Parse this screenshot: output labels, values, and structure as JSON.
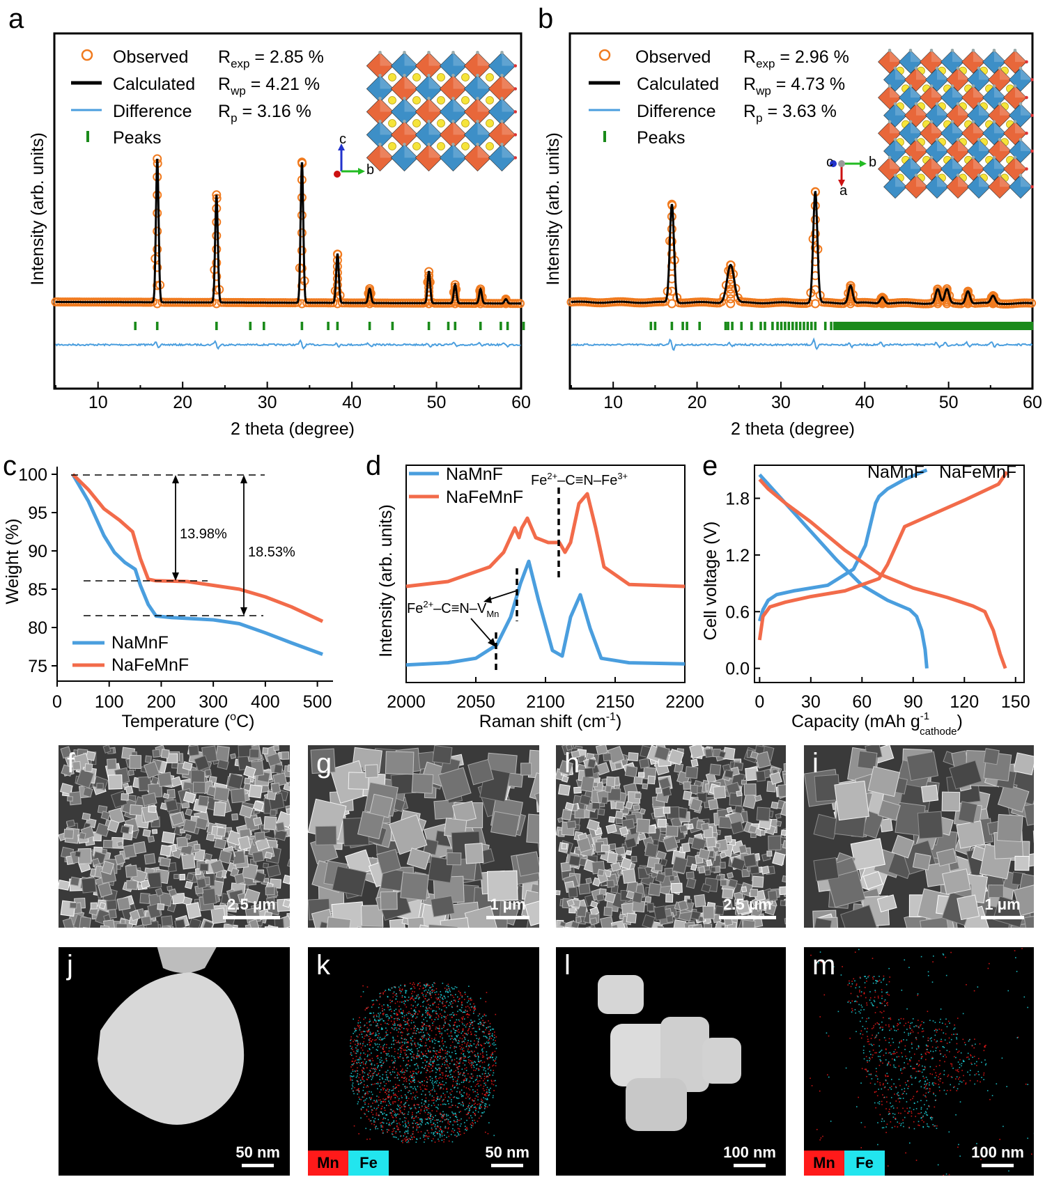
{
  "panels": {
    "a": {
      "letter": "a",
      "ylabel": "Intensity (arb. units)",
      "xlabel": "2  theta (degree)",
      "legend": [
        "Observed",
        "Calculated",
        "Difference",
        "Peaks"
      ],
      "stats": [
        {
          "sym": "R",
          "sub": "exp",
          "val": " = 2.85 %"
        },
        {
          "sym": "R",
          "sub": "wp",
          "val": " = 4.21 %"
        },
        {
          "sym": "R",
          "sub": "p",
          "val": " = 3.16 %"
        }
      ],
      "xticks": [
        "10",
        "20",
        "30",
        "40",
        "50",
        "60"
      ],
      "axis_labels": {
        "c": "c",
        "b": "b"
      }
    },
    "b": {
      "letter": "b",
      "ylabel": "Intensity (arb. units)",
      "xlabel": "2 theta (degree)",
      "legend": [
        "Observed",
        "Calculated",
        "Difference",
        "Peaks"
      ],
      "stats": [
        {
          "sym": "R",
          "sub": "exp",
          "val": " = 2.96 %"
        },
        {
          "sym": "R",
          "sub": "wp",
          "val": " = 4.73 %"
        },
        {
          "sym": "R",
          "sub": "p",
          "val": " = 3.63 %"
        }
      ],
      "xticks": [
        "10",
        "20",
        "30",
        "40",
        "50",
        "60"
      ],
      "axis_labels": {
        "c": "c",
        "b": "b",
        "a": "a"
      }
    },
    "c": {
      "letter": "c",
      "ylabel": "Weight (%)",
      "xlabel": "Temperature (",
      "xlabel_unit": "C)",
      "xlabel_sup": "o",
      "legend": [
        "NaMnF",
        "NaFeMnF"
      ],
      "annotations": [
        "13.98%",
        "18.53%"
      ],
      "xticks": [
        "0",
        "100",
        "200",
        "300",
        "400",
        "500"
      ],
      "yticks": [
        "75",
        "80",
        "85",
        "90",
        "95",
        "100"
      ]
    },
    "d": {
      "letter": "d",
      "ylabel": "Intensity (arb. units)",
      "xlabel": "Raman shift (cm",
      "xlabel_sup": "-1",
      "legend": [
        "NaMnF",
        "NaFeMnF"
      ],
      "ann_top": "Fe",
      "ann_top_sup": "2+",
      "ann_top_rest": "–C≡N–Fe",
      "ann_top_sup2": "3+",
      "ann_bot": "Fe",
      "ann_bot_sup": "2+",
      "ann_bot_rest": "–C≡N–V",
      "ann_bot_sub": "Mn",
      "xticks": [
        "2000",
        "2050",
        "2100",
        "2150",
        "2200"
      ]
    },
    "e": {
      "letter": "e",
      "ylabel": "Cell voltage (V)",
      "xlabel": "Capacity (mAh g",
      "xlabel_sup": "-1",
      "xlabel_sub": "cathode",
      "xlabel_end": ")",
      "series_labels": [
        "NaMnF",
        "NaFeMnF"
      ],
      "xticks": [
        "0",
        "30",
        "60",
        "90",
        "120",
        "150"
      ],
      "yticks": [
        "0.0",
        "0.6",
        "1.2",
        "1.8"
      ]
    }
  },
  "micrographs": [
    {
      "letter": "f",
      "scale": "2.5 μm"
    },
    {
      "letter": "g",
      "scale": "1 μm"
    },
    {
      "letter": "h",
      "scale": "2.5 μm"
    },
    {
      "letter": "i",
      "scale": "1 μm"
    },
    {
      "letter": "j",
      "scale": "50 nm"
    },
    {
      "letter": "k",
      "scale": "50 nm",
      "legend": [
        "Mn",
        "Fe"
      ]
    },
    {
      "letter": "l",
      "scale": "100 nm"
    },
    {
      "letter": "m",
      "scale": "100 nm",
      "legend": [
        "Mn",
        "Fe"
      ]
    }
  ],
  "colors": {
    "observed": "#f07a1e",
    "calculated": "#000000",
    "difference": "#4a9ede",
    "peaks": "#1a8a1a",
    "namnf": "#4a9ede",
    "nafemnf": "#f26b4a",
    "mn": "#ff1a1a",
    "fe": "#22e5ee"
  },
  "chart_data": [
    {
      "type": "line",
      "title": "a",
      "xlabel": "2 theta (degree)",
      "ylabel": "Intensity (arb. units)",
      "xlim": [
        5,
        60
      ],
      "peaks_observed": [
        {
          "x": 17.0,
          "y": 100
        },
        {
          "x": 24.0,
          "y": 75
        },
        {
          "x": 34.1,
          "y": 98
        },
        {
          "x": 38.3,
          "y": 34
        },
        {
          "x": 42.1,
          "y": 10
        },
        {
          "x": 49.1,
          "y": 22
        },
        {
          "x": 52.2,
          "y": 13
        },
        {
          "x": 55.2,
          "y": 10
        },
        {
          "x": 58.2,
          "y": 3
        }
      ],
      "bragg_positions": [
        14.4,
        17.0,
        24.0,
        28.0,
        29.6,
        34.1,
        37.2,
        38.3,
        42.1,
        44.8,
        49.1,
        51.4,
        52.2,
        55.2,
        57.6,
        58.4,
        60.3
      ]
    },
    {
      "type": "line",
      "title": "b",
      "xlabel": "2 theta (degree)",
      "ylabel": "Intensity (arb. units)",
      "xlim": [
        5,
        60
      ],
      "peaks_observed": [
        {
          "x": 17.0,
          "y": 78
        },
        {
          "x": 24.0,
          "y": 30
        },
        {
          "x": 34.1,
          "y": 88
        },
        {
          "x": 38.3,
          "y": 14
        },
        {
          "x": 42.1,
          "y": 5
        },
        {
          "x": 48.7,
          "y": 11
        },
        {
          "x": 49.8,
          "y": 11
        },
        {
          "x": 52.3,
          "y": 10
        },
        {
          "x": 55.3,
          "y": 6
        }
      ]
    },
    {
      "type": "line",
      "title": "c",
      "xlabel": "Temperature (oC)",
      "ylabel": "Weight (%)",
      "xlim": [
        0,
        530
      ],
      "ylim": [
        73,
        101
      ],
      "series": [
        {
          "name": "NaMnF",
          "x": [
            30,
            60,
            90,
            110,
            130,
            150,
            160,
            175,
            190,
            220,
            300,
            350,
            400,
            450,
            510
          ],
          "values": [
            100,
            96.5,
            92,
            89.8,
            88.5,
            87.6,
            85.5,
            83,
            81.5,
            81.3,
            81,
            80.5,
            79.3,
            78,
            76.5
          ]
        },
        {
          "name": "NaFeMnF",
          "x": [
            30,
            60,
            90,
            120,
            145,
            160,
            175,
            190,
            250,
            300,
            350,
            400,
            450,
            510
          ],
          "values": [
            100,
            98,
            95.5,
            94,
            92.5,
            89,
            86.3,
            86.1,
            86,
            85.5,
            85,
            84,
            82.7,
            80.8
          ]
        }
      ],
      "annotations": [
        {
          "text": "13.98%",
          "from": 100,
          "to": 86.02
        },
        {
          "text": "18.53%",
          "from": 100,
          "to": 81.47
        }
      ]
    },
    {
      "type": "line",
      "title": "d",
      "xlabel": "Raman shift (cm-1)",
      "ylabel": "Intensity (arb. units)",
      "xlim": [
        2000,
        2200
      ],
      "series": [
        {
          "name": "NaMnF",
          "x": [
            2000,
            2030,
            2050,
            2065,
            2075,
            2082,
            2088,
            2095,
            2105,
            2112,
            2118,
            2125,
            2132,
            2140,
            2160,
            2200
          ],
          "values": [
            0.02,
            0.04,
            0.08,
            0.2,
            0.45,
            0.75,
            0.95,
            0.6,
            0.15,
            0.1,
            0.45,
            0.65,
            0.35,
            0.08,
            0.04,
            0.03
          ]
        },
        {
          "name": "NaFeMnF",
          "x": [
            2000,
            2030,
            2060,
            2070,
            2078,
            2081,
            2083,
            2087,
            2093,
            2102,
            2110,
            2114,
            2118,
            2124,
            2130,
            2136,
            2142,
            2160,
            2200
          ],
          "values": [
            0.0,
            0.05,
            0.2,
            0.35,
            0.6,
            0.5,
            0.6,
            0.7,
            0.5,
            0.45,
            0.45,
            0.35,
            0.45,
            0.85,
            0.95,
            0.6,
            0.2,
            0.02,
            0.0
          ]
        }
      ]
    },
    {
      "type": "line",
      "title": "e",
      "xlabel": "Capacity (mAh g-1 cathode)",
      "ylabel": "Cell voltage (V)",
      "xlim": [
        -3,
        155
      ],
      "ylim": [
        -0.15,
        2.15
      ],
      "series": [
        {
          "name": "NaMnF charge",
          "x": [
            0,
            2,
            5,
            10,
            20,
            40,
            55,
            62,
            66,
            68,
            70,
            75,
            85,
            98
          ],
          "values": [
            0.5,
            0.62,
            0.72,
            0.78,
            0.82,
            0.88,
            1.05,
            1.3,
            1.6,
            1.75,
            1.82,
            1.9,
            2.0,
            2.1
          ]
        },
        {
          "name": "NaMnF discharge",
          "x": [
            0,
            5,
            15,
            30,
            45,
            60,
            75,
            88,
            92,
            95,
            97,
            98
          ],
          "values": [
            2.05,
            1.95,
            1.75,
            1.45,
            1.15,
            0.88,
            0.72,
            0.62,
            0.55,
            0.4,
            0.2,
            0.0
          ]
        },
        {
          "name": "NaFeMnF charge",
          "x": [
            0,
            2,
            6,
            15,
            30,
            50,
            70,
            75,
            80,
            85,
            100,
            120,
            140,
            145
          ],
          "values": [
            0.3,
            0.55,
            0.65,
            0.7,
            0.76,
            0.82,
            0.95,
            1.1,
            1.3,
            1.5,
            1.62,
            1.78,
            1.95,
            2.08
          ]
        },
        {
          "name": "NaFeMnF discharge",
          "x": [
            0,
            5,
            15,
            30,
            50,
            70,
            90,
            110,
            125,
            132,
            137,
            141,
            144
          ],
          "values": [
            2.0,
            1.9,
            1.75,
            1.55,
            1.25,
            1.0,
            0.85,
            0.75,
            0.66,
            0.6,
            0.4,
            0.15,
            0.0
          ]
        }
      ]
    }
  ]
}
